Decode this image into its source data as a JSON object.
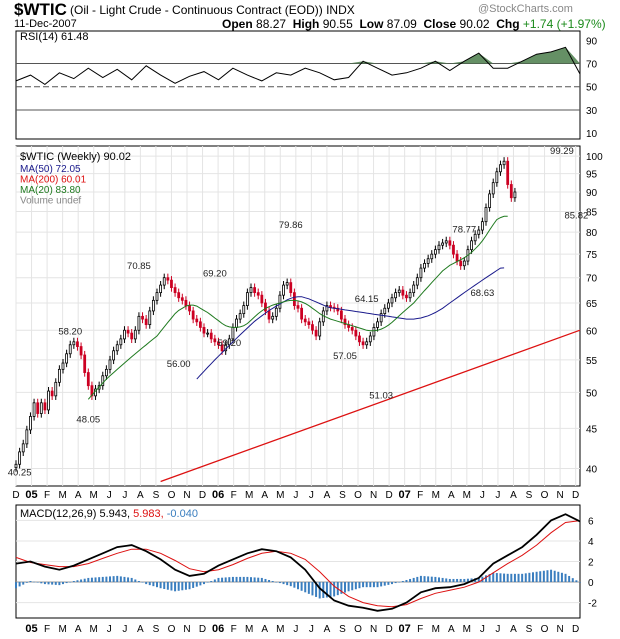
{
  "header": {
    "ticker": "$WTIC",
    "subtitle": "(Oil - Light Crude - Continuous Contract (EOD)) INDX",
    "date": "11-Dec-2007",
    "open_label": "Open",
    "open": "88.27",
    "high_label": "High",
    "high": "90.55",
    "low_label": "Low",
    "low": "87.09",
    "close_label": "Close",
    "close": "90.02",
    "chg_label": "Chg",
    "chg": "+1.74 (+1.97%)",
    "watermark": "@StockCharts.com"
  },
  "colors": {
    "up": "#000000",
    "down": "#cc0022",
    "ma50": "#1a1a8c",
    "ma200": "#dd1111",
    "ma20": "#1f7a1f",
    "rsi": "#000000",
    "macd": "#000000",
    "signal": "#dd1111",
    "hist": "#3a7ebf",
    "rsi_fill": "#4a7d4a"
  },
  "chart_data": [
    {
      "type": "line",
      "name": "rsi_panel",
      "legend": "RSI(14) 61.48",
      "ylim": [
        5,
        98
      ],
      "yticks": [
        10,
        30,
        50,
        70,
        90
      ],
      "x": [
        0,
        4,
        8,
        12,
        16,
        20,
        24,
        28,
        32,
        36,
        40,
        44,
        48,
        52,
        56,
        60,
        64,
        68,
        72,
        76,
        80,
        84,
        88,
        92,
        96,
        100,
        104,
        108,
        112,
        116,
        120,
        124,
        128,
        132,
        136,
        140,
        144,
        148,
        152,
        156
      ],
      "values": [
        55,
        60,
        52,
        62,
        57,
        66,
        58,
        65,
        56,
        68,
        60,
        53,
        59,
        63,
        56,
        66,
        60,
        55,
        62,
        60,
        66,
        62,
        56,
        58,
        72,
        66,
        60,
        62,
        66,
        72,
        64,
        72,
        79,
        66,
        66,
        72,
        78,
        80,
        84,
        61
      ]
    },
    {
      "type": "candlestick",
      "name": "price_panel",
      "legend": "$WTIC (Weekly) 90.02",
      "ma_labels": [
        "MA(50) 72.05",
        "MA(200) 60.01",
        "MA(20) 83.80",
        "Volume undef"
      ],
      "ylim": [
        38,
        103
      ],
      "yticks": [
        40,
        45,
        50,
        55,
        60,
        65,
        70,
        75,
        80,
        85,
        90,
        95,
        100
      ],
      "x_ticks": [
        "D",
        "05",
        "F",
        "M",
        "A",
        "M",
        "J",
        "J",
        "A",
        "S",
        "O",
        "N",
        "D",
        "06",
        "F",
        "M",
        "A",
        "M",
        "J",
        "J",
        "A",
        "S",
        "O",
        "N",
        "D",
        "07",
        "F",
        "M",
        "A",
        "M",
        "J",
        "J",
        "A",
        "S",
        "O",
        "N",
        "D"
      ],
      "x_tick_weeks": [
        0,
        4.3,
        8.6,
        12.9,
        17.2,
        21.5,
        25.8,
        30.1,
        34.4,
        38.7,
        43,
        47.3,
        51.6,
        55.9,
        60.2,
        64.5,
        68.8,
        73.1,
        77.4,
        81.7,
        86,
        90.3,
        94.6,
        98.9,
        103.2,
        107.5,
        111.8,
        116.1,
        120.4,
        124.7,
        129,
        133.3,
        137.6,
        141.9,
        146.2,
        150.5,
        154.8
      ],
      "close": [
        40.5,
        42.0,
        43.0,
        44.8,
        46.6,
        48.5,
        47.0,
        48.5,
        47.5,
        50.2,
        49.5,
        51.5,
        53.5,
        54.5,
        56.0,
        57.5,
        58.0,
        57.2,
        55.8,
        53.0,
        51.0,
        49.5,
        50.5,
        51.0,
        52.5,
        53.5,
        55.0,
        56.5,
        57.5,
        58.5,
        60.0,
        59.5,
        58.5,
        60.0,
        62.5,
        62.0,
        61.0,
        63.5,
        65.5,
        67.0,
        68.5,
        70.0,
        69.5,
        68.0,
        67.0,
        66.0,
        65.5,
        64.5,
        63.5,
        62.0,
        61.5,
        60.5,
        59.5,
        59.5,
        58.5,
        58.0,
        57.5,
        56.5,
        57.5,
        58.5,
        60.5,
        62.0,
        63.0,
        64.5,
        67.0,
        68.0,
        67.0,
        66.5,
        65.0,
        63.5,
        62.0,
        62.5,
        64.0,
        66.5,
        68.5,
        69.0,
        67.0,
        64.5,
        64.0,
        62.0,
        61.5,
        61.0,
        60.0,
        59.0,
        61.5,
        63.5,
        64.5,
        64.2,
        64.0,
        63.5,
        62.0,
        61.0,
        60.5,
        60.0,
        59.0,
        58.0,
        57.5,
        58.0,
        59.0,
        60.5,
        61.5,
        63.0,
        64.0,
        65.0,
        66.0,
        67.0,
        67.5,
        66.5,
        66.0,
        67.0,
        68.5,
        70.0,
        72.0,
        73.0,
        74.0,
        75.0,
        76.0,
        77.0,
        77.5,
        78.0,
        77.0,
        75.0,
        73.5,
        72.5,
        73.5,
        76.0,
        78.0,
        79.5,
        80.5,
        82.5,
        86.0,
        89.5,
        92.5,
        95.5,
        97.5,
        98.5,
        92.0,
        88.5,
        90.0
      ],
      "ma50": [
        null,
        null,
        null,
        null,
        null,
        null,
        null,
        null,
        null,
        null,
        null,
        null,
        null,
        null,
        null,
        null,
        null,
        null,
        null,
        null,
        null,
        null,
        null,
        null,
        null,
        null,
        null,
        null,
        null,
        null,
        null,
        null,
        null,
        null,
        null,
        null,
        null,
        null,
        null,
        null,
        null,
        null,
        null,
        null,
        null,
        null,
        null,
        null,
        null,
        null,
        52.0,
        52.6,
        53.2,
        53.8,
        54.4,
        55.0,
        55.6,
        56.2,
        56.8,
        57.4,
        58.0,
        58.6,
        59.2,
        59.8,
        60.4,
        61.0,
        61.6,
        62.1,
        62.6,
        63.1,
        63.6,
        64.0,
        64.4,
        64.8,
        65.2,
        65.6,
        65.9,
        66.1,
        66.2,
        66.2,
        66.0,
        65.8,
        65.5,
        65.2,
        64.9,
        64.6,
        64.3,
        64.1,
        64.0,
        63.9,
        63.8,
        63.7,
        63.6,
        63.5,
        63.4,
        63.3,
        63.2,
        63.1,
        63.0,
        62.9,
        62.8,
        62.7,
        62.6,
        62.5,
        62.4,
        62.3,
        62.2,
        62.1,
        62.0,
        62.0,
        62.0,
        62.1,
        62.2,
        62.4,
        62.6,
        62.9,
        63.2,
        63.6,
        64.0,
        64.5,
        65.0,
        65.5,
        66.0,
        66.5,
        67.0,
        67.5,
        68.0,
        68.5,
        69.0,
        69.5,
        70.0,
        70.5,
        71.0,
        71.5,
        72.0,
        72.05
      ],
      "ma20": [
        null,
        null,
        null,
        null,
        null,
        null,
        null,
        null,
        null,
        null,
        null,
        null,
        null,
        null,
        null,
        null,
        null,
        null,
        null,
        null,
        49.0,
        49.6,
        50.2,
        50.8,
        51.4,
        52.0,
        52.5,
        53.0,
        53.5,
        54.0,
        54.5,
        55.0,
        55.5,
        56.0,
        56.5,
        57.0,
        57.5,
        58.0,
        58.5,
        59.0,
        59.8,
        60.6,
        61.4,
        62.2,
        63.0,
        63.6,
        64.0,
        64.4,
        64.6,
        64.6,
        64.4,
        64.0,
        63.6,
        63.2,
        62.7,
        62.2,
        61.7,
        61.2,
        60.8,
        60.6,
        60.5,
        60.5,
        60.6,
        60.8,
        61.2,
        61.8,
        62.4,
        63.0,
        63.5,
        64.0,
        64.3,
        64.6,
        64.8,
        65.0,
        65.2,
        65.4,
        65.5,
        65.5,
        65.4,
        65.2,
        64.9,
        64.5,
        64.0,
        63.5,
        63.0,
        62.6,
        62.3,
        62.0,
        61.8,
        61.6,
        61.4,
        61.2,
        61.0,
        60.8,
        60.6,
        60.4,
        60.2,
        60.0,
        59.9,
        59.9,
        60.0,
        60.2,
        60.5,
        60.9,
        61.4,
        62.0,
        62.6,
        63.2,
        63.8,
        64.4,
        65.0,
        65.8,
        66.6,
        67.4,
        68.2,
        69.0,
        69.8,
        70.6,
        71.4,
        72.0,
        72.6,
        73.0,
        73.4,
        73.8,
        74.2,
        74.8,
        75.4,
        76.2,
        77.0,
        78.0,
        79.2,
        80.5,
        81.8,
        83.0,
        83.5,
        83.8,
        83.8
      ],
      "ma200_line": {
        "x": [
          40,
          156
        ],
        "y": [
          38.5,
          60.01
        ]
      },
      "labels": [
        {
          "text": "40.25",
          "w": 1,
          "v": 40.25,
          "pos": "below"
        },
        {
          "text": "48.05",
          "w": 20,
          "v": 47.0,
          "pos": "below"
        },
        {
          "text": "58.20",
          "w": 15,
          "v": 58.7,
          "pos": "above"
        },
        {
          "text": "70.85",
          "w": 34,
          "v": 71.2,
          "pos": "above"
        },
        {
          "text": "56.00",
          "w": 45,
          "v": 55.3,
          "pos": "below"
        },
        {
          "text": "69.20",
          "w": 55,
          "v": 69.6,
          "pos": "above"
        },
        {
          "text": "59.20",
          "w": 59,
          "v": 58.8,
          "pos": "below"
        },
        {
          "text": "79.86",
          "w": 76,
          "v": 80.3,
          "pos": "above"
        },
        {
          "text": "57.05",
          "w": 91,
          "v": 56.6,
          "pos": "below"
        },
        {
          "text": "64.15",
          "w": 97,
          "v": 64.6,
          "pos": "above"
        },
        {
          "text": "51.03",
          "w": 101,
          "v": 50.4,
          "pos": "below"
        },
        {
          "text": "78.77",
          "w": 124,
          "v": 79.2,
          "pos": "above"
        },
        {
          "text": "68.63",
          "w": 129,
          "v": 68.1,
          "pos": "below"
        },
        {
          "text": "99.29",
          "w": 151,
          "v": 99.7,
          "pos": "above"
        },
        {
          "text": "85.82",
          "w": 155,
          "v": 85.5,
          "pos": "below"
        }
      ]
    },
    {
      "type": "line",
      "name": "macd_panel",
      "legend_name": "MACD(12,26,9)",
      "legend_v1": "5.943",
      "legend_v2": "5.983",
      "legend_v3": "-0.040",
      "ylim": [
        -3.5,
        7.5
      ],
      "yticks": [
        -2,
        0,
        2,
        4,
        6
      ],
      "x": [
        0,
        4,
        8,
        12,
        16,
        20,
        24,
        28,
        32,
        36,
        40,
        44,
        48,
        52,
        56,
        60,
        64,
        68,
        72,
        76,
        80,
        84,
        88,
        92,
        96,
        100,
        104,
        108,
        112,
        116,
        120,
        124,
        128,
        132,
        136,
        140,
        144,
        148,
        152,
        156
      ],
      "macd": [
        1.8,
        2.0,
        1.5,
        1.2,
        1.6,
        2.2,
        2.8,
        3.4,
        3.6,
        3.0,
        2.2,
        1.2,
        0.6,
        0.8,
        1.6,
        2.2,
        2.8,
        3.2,
        3.0,
        2.4,
        1.2,
        -0.6,
        -1.8,
        -2.3,
        -2.5,
        -2.8,
        -2.6,
        -2.0,
        -1.0,
        -0.6,
        -0.5,
        -0.2,
        0.4,
        1.8,
        2.6,
        3.4,
        4.6,
        6.0,
        6.6,
        5.9
      ],
      "signal": [
        2.4,
        1.9,
        1.7,
        1.5,
        1.5,
        1.8,
        2.3,
        2.8,
        3.2,
        3.2,
        2.8,
        2.1,
        1.3,
        1.0,
        1.2,
        1.7,
        2.3,
        2.8,
        3.0,
        2.8,
        2.2,
        1.0,
        -0.4,
        -1.4,
        -2.0,
        -2.3,
        -2.4,
        -2.2,
        -1.6,
        -1.1,
        -0.8,
        -0.5,
        0.0,
        0.9,
        1.8,
        2.6,
        3.6,
        4.8,
        5.8,
        5.98
      ],
      "hist": [
        -0.6,
        0.1,
        -0.2,
        -0.3,
        0.1,
        0.4,
        0.5,
        0.6,
        0.4,
        -0.2,
        -0.6,
        -0.9,
        -0.7,
        -0.2,
        0.4,
        0.5,
        0.5,
        0.4,
        0.0,
        -0.4,
        -1.0,
        -1.6,
        -1.4,
        -0.9,
        -0.5,
        -0.5,
        -0.2,
        0.2,
        0.6,
        0.5,
        0.3,
        0.3,
        0.4,
        0.9,
        0.8,
        0.8,
        1.0,
        1.2,
        0.8,
        -0.04
      ],
      "x_ticks": [
        "05",
        "F",
        "M",
        "A",
        "M",
        "J",
        "J",
        "A",
        "S",
        "O",
        "N",
        "D",
        "06",
        "F",
        "M",
        "A",
        "M",
        "J",
        "J",
        "A",
        "S",
        "O",
        "N",
        "D",
        "07",
        "F",
        "M",
        "A",
        "M",
        "J",
        "J",
        "A",
        "S",
        "O",
        "N",
        "D"
      ]
    }
  ]
}
